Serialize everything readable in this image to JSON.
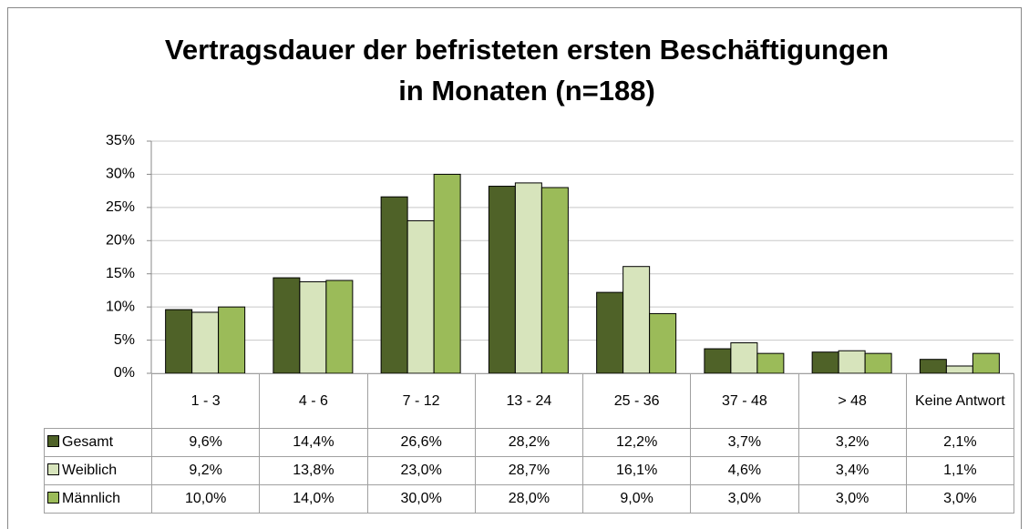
{
  "chart_data": {
    "type": "bar",
    "title": "Vertragsdauer der befristeten ersten Beschäftigungen",
    "subtitle": "in Monaten (n=188)",
    "categories": [
      "1 - 3",
      "4 - 6",
      "7 - 12",
      "13 - 24",
      "25 - 36",
      "37 - 48",
      "> 48",
      "Keine Antwort"
    ],
    "series": [
      {
        "name": "Gesamt",
        "color": "#4f6228",
        "values": [
          9.6,
          14.4,
          26.6,
          28.2,
          12.2,
          3.7,
          3.2,
          2.1
        ],
        "value_labels": [
          "9,6%",
          "14,4%",
          "26,6%",
          "28,2%",
          "12,2%",
          "3,7%",
          "3,2%",
          "2,1%"
        ]
      },
      {
        "name": "Weiblich",
        "color": "#d7e4bc",
        "values": [
          9.2,
          13.8,
          23.0,
          28.7,
          16.1,
          4.6,
          3.4,
          1.1
        ],
        "value_labels": [
          "9,2%",
          "13,8%",
          "23,0%",
          "28,7%",
          "16,1%",
          "4,6%",
          "3,4%",
          "1,1%"
        ]
      },
      {
        "name": "Männlich",
        "color": "#9bbb59",
        "values": [
          10.0,
          14.0,
          30.0,
          28.0,
          9.0,
          3.0,
          3.0,
          3.0
        ],
        "value_labels": [
          "10,0%",
          "14,0%",
          "30,0%",
          "28,0%",
          "9,0%",
          "3,0%",
          "3,0%",
          "3,0%"
        ]
      }
    ],
    "ylim": [
      0,
      35
    ],
    "yticks": [
      {
        "value": 0,
        "label": "0%"
      },
      {
        "value": 5,
        "label": "5%"
      },
      {
        "value": 10,
        "label": "10%"
      },
      {
        "value": 15,
        "label": "15%"
      },
      {
        "value": 20,
        "label": "20%"
      },
      {
        "value": 25,
        "label": "25%"
      },
      {
        "value": 30,
        "label": "30%"
      },
      {
        "value": 35,
        "label": "35%"
      }
    ],
    "grid": true
  }
}
